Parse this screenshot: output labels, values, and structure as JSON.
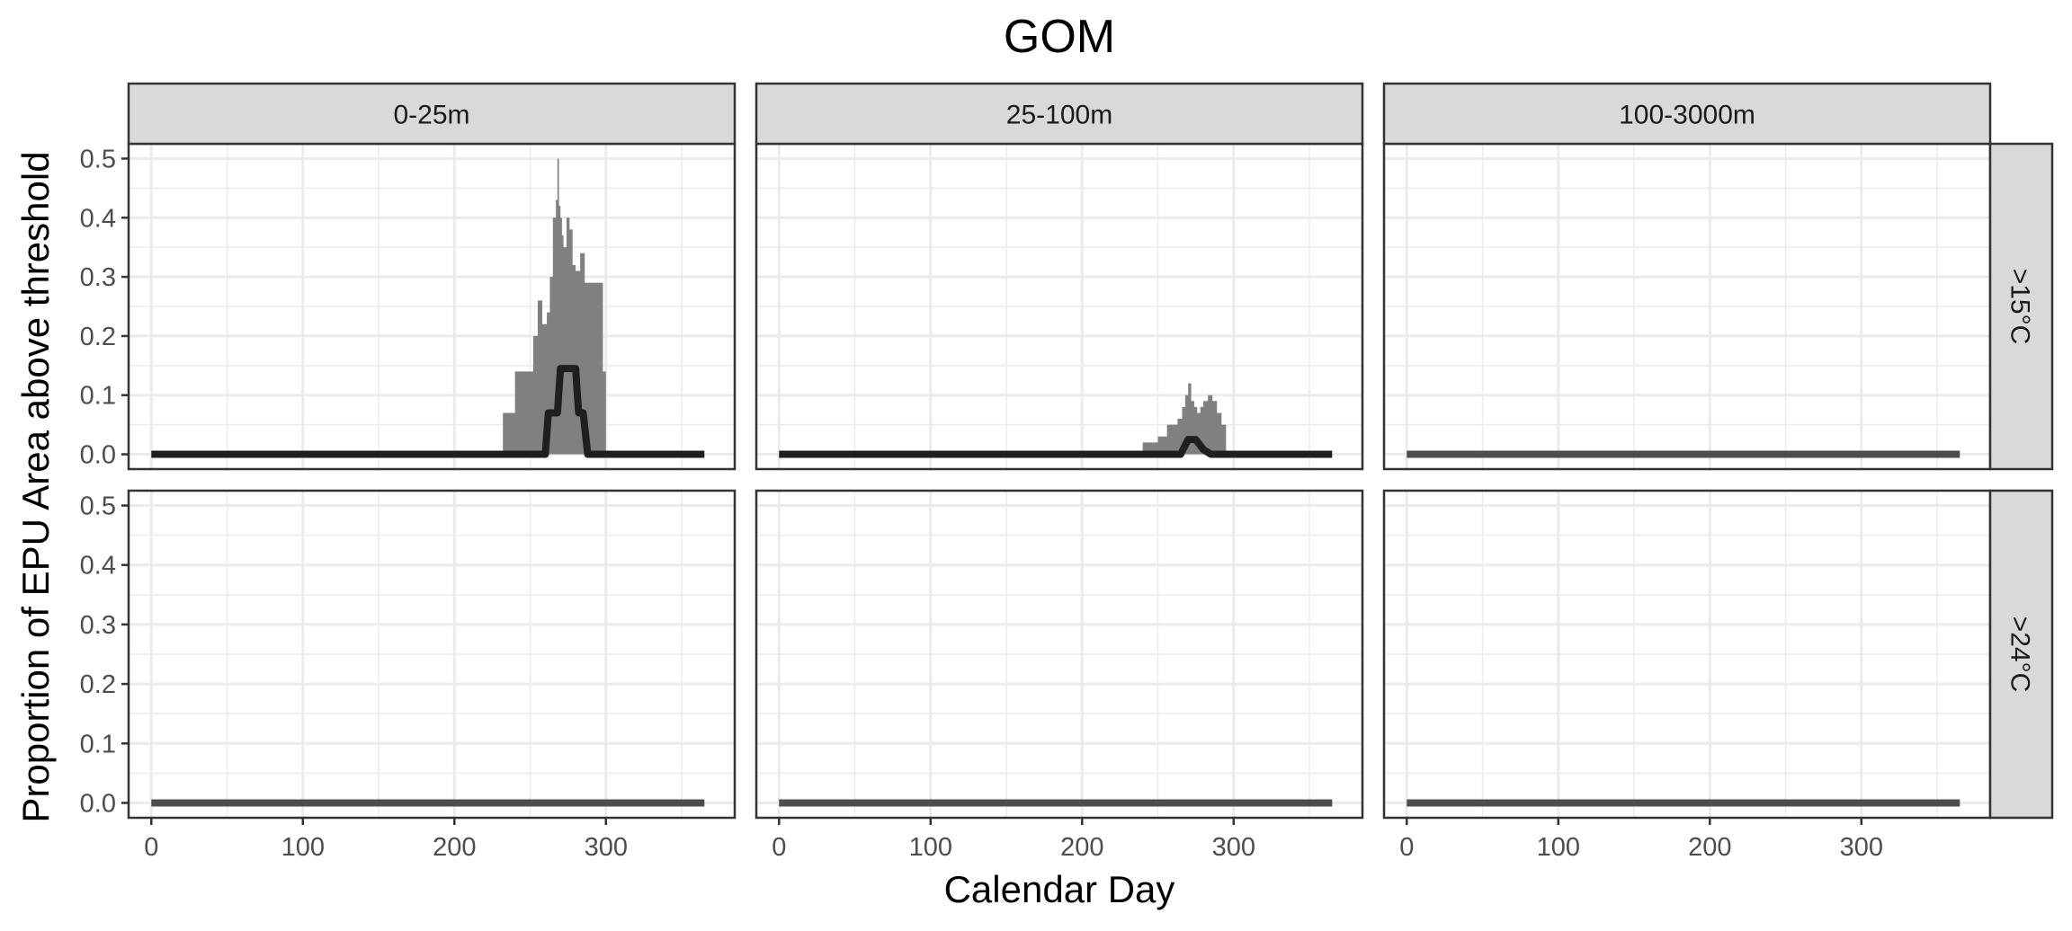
{
  "chart_data": {
    "type": "area",
    "title": "GOM",
    "xlabel": "Calendar Day",
    "ylabel": "Proportion of EPU Area above threshold",
    "xlim": [
      -15,
      385
    ],
    "ylim": [
      -0.025,
      0.525
    ],
    "x_ticks": [
      0,
      100,
      200,
      300
    ],
    "y_ticks": [
      0.0,
      0.1,
      0.2,
      0.3,
      0.4,
      0.5
    ],
    "x_tick_labels": [
      "0",
      "100",
      "200",
      "300"
    ],
    "y_tick_labels": [
      "0.0",
      "0.1",
      "0.2",
      "0.3",
      "0.4",
      "0.5"
    ],
    "grid": true,
    "columns": [
      "0-25m",
      "25-100m",
      "100-3000m"
    ],
    "rows": [
      ">15°C",
      ">24°C"
    ],
    "colors": {
      "ribbon": "#808080",
      "line": "#1f1f1f",
      "strip_fill": "#d9d9d9",
      "grid": "#ebebeb",
      "border": "#333333"
    },
    "panels": [
      {
        "column": "0-25m",
        "row": ">15°C",
        "ribbon": {
          "x": [
            232,
            240,
            248,
            252,
            255,
            258,
            261,
            263,
            265,
            267,
            268,
            269,
            270,
            271,
            272,
            274,
            276,
            278,
            280,
            283,
            286,
            290,
            296,
            298,
            300
          ],
          "ymax": [
            0.07,
            0.14,
            0.14,
            0.2,
            0.26,
            0.22,
            0.24,
            0.3,
            0.4,
            0.43,
            0.5,
            0.42,
            0.4,
            0.37,
            0.35,
            0.4,
            0.38,
            0.32,
            0.31,
            0.34,
            0.29,
            0.29,
            0.29,
            0.14,
            0.14
          ]
        },
        "line": {
          "x": [
            0,
            260,
            262,
            265,
            268,
            270,
            280,
            282,
            285,
            288,
            365
          ],
          "y": [
            0.0,
            0.0,
            0.07,
            0.07,
            0.07,
            0.145,
            0.145,
            0.07,
            0.07,
            0.0,
            0.0
          ]
        }
      },
      {
        "column": "25-100m",
        "row": ">15°C",
        "ribbon": {
          "x": [
            232,
            240,
            245,
            250,
            253,
            256,
            260,
            263,
            266,
            268,
            270,
            272,
            274,
            276,
            278,
            280,
            283,
            286,
            289,
            292,
            295
          ],
          "ymax": [
            0.005,
            0.02,
            0.02,
            0.03,
            0.03,
            0.05,
            0.05,
            0.06,
            0.08,
            0.1,
            0.12,
            0.09,
            0.08,
            0.07,
            0.08,
            0.09,
            0.1,
            0.09,
            0.07,
            0.05,
            0.02
          ]
        },
        "line": {
          "x": [
            0,
            265,
            270,
            275,
            280,
            285,
            365
          ],
          "y": [
            0.0,
            0.0,
            0.025,
            0.025,
            0.008,
            0.0,
            0.0
          ]
        }
      },
      {
        "column": "100-3000m",
        "row": ">15°C",
        "line": {
          "x": [
            0,
            365
          ],
          "y": [
            0.0,
            0.0
          ]
        }
      },
      {
        "column": "0-25m",
        "row": ">24°C",
        "line": {
          "x": [
            0,
            365
          ],
          "y": [
            0.0,
            0.0
          ]
        }
      },
      {
        "column": "25-100m",
        "row": ">24°C",
        "line": {
          "x": [
            0,
            365
          ],
          "y": [
            0.0,
            0.0
          ]
        }
      },
      {
        "column": "100-3000m",
        "row": ">24°C",
        "line": {
          "x": [
            0,
            365
          ],
          "y": [
            0.0,
            0.0
          ]
        }
      }
    ]
  }
}
